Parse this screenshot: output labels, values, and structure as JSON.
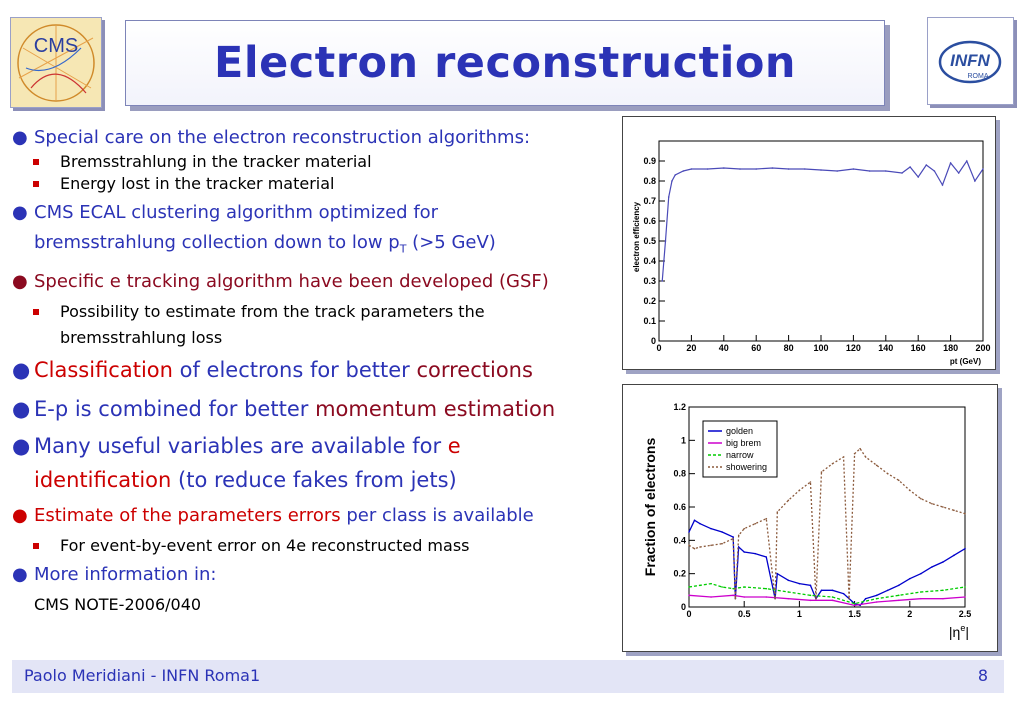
{
  "title": "Electron reconstruction",
  "logos": {
    "left": "CMS",
    "right_main": "INFN",
    "right_sub": "ROMA"
  },
  "bullets": {
    "b1": "Special care on the electron reconstruction algorithms:",
    "b1_sub1": "Bremsstrahlung in the tracker material",
    "b1_sub2": "Energy lost in the tracker material",
    "b2_line1": "CMS ECAL clustering algorithm optimized for",
    "b2_line2_pre": "bremsstrahlung collection down to low p",
    "b2_line2_sub": "T",
    "b2_line2_post": " (>5 GeV)",
    "b3": "Specific e tracking algorithm have been developed (GSF)",
    "b3_sub1_line1": "Possibility to estimate from the track parameters the",
    "b3_sub1_line2": "bremsstrahlung loss",
    "b4_a": "Classification",
    "b4_b": " of electrons for better ",
    "b4_c": "corrections",
    "b5_a": "E-p is combined for better ",
    "b5_b": "momentum estimation",
    "b6_a": "Many useful variables are available for ",
    "b6_b": "e",
    "b6_c": "identification",
    "b6_d": " (to reduce fakes from jets)",
    "b7_a": "Estimate of the parameters errors",
    "b7_b": " per class is available",
    "b7_sub1": "For event-by-event error on 4e reconstructed mass",
    "b8": "More information in:",
    "b8_text": "CMS NOTE-2006/040"
  },
  "footer": {
    "author": "Paolo Meridiani  - INFN Roma1",
    "page": "8"
  },
  "chart_data": [
    {
      "type": "line",
      "ylabel": "electron efficiency",
      "xlabel": "pt (GeV)",
      "xlim": [
        0,
        200
      ],
      "ylim": [
        0,
        1.0
      ],
      "xticks": [
        "0",
        "20",
        "40",
        "60",
        "80",
        "100",
        "120",
        "140",
        "160",
        "180",
        "200"
      ],
      "yticks": [
        "0",
        "0.1",
        "0.2",
        "0.3",
        "0.4",
        "0.5",
        "0.6",
        "0.7",
        "0.8",
        "0.9"
      ],
      "color": "#4a4ab8",
      "series": [
        {
          "x": [
            2,
            4,
            6,
            8,
            10,
            15,
            20,
            30,
            40,
            50,
            60,
            70,
            80,
            90,
            100,
            110,
            120,
            130,
            140,
            150,
            155,
            160,
            165,
            170,
            175,
            180,
            185,
            190,
            195,
            200
          ],
          "values": [
            0.3,
            0.5,
            0.72,
            0.8,
            0.83,
            0.85,
            0.86,
            0.86,
            0.865,
            0.86,
            0.86,
            0.865,
            0.86,
            0.86,
            0.855,
            0.85,
            0.86,
            0.85,
            0.85,
            0.84,
            0.87,
            0.82,
            0.88,
            0.85,
            0.78,
            0.89,
            0.84,
            0.9,
            0.8,
            0.86
          ]
        }
      ]
    },
    {
      "type": "line",
      "ylabel": "Fraction of electrons",
      "xlabel": "|η^e|",
      "xlim": [
        0,
        2.5
      ],
      "ylim": [
        0,
        1.2
      ],
      "xticks": [
        "0",
        "0.5",
        "1",
        "1.5",
        "2",
        "2.5"
      ],
      "yticks": [
        "0",
        "0.2",
        "0.4",
        "0.6",
        "0.8",
        "1",
        "1.2"
      ],
      "legend_position": "top-left",
      "series": [
        {
          "name": "golden",
          "color": "#0000cc",
          "x": [
            0,
            0.05,
            0.1,
            0.2,
            0.3,
            0.4,
            0.42,
            0.45,
            0.5,
            0.6,
            0.7,
            0.78,
            0.8,
            0.9,
            1.0,
            1.1,
            1.15,
            1.2,
            1.3,
            1.4,
            1.45,
            1.5,
            1.55,
            1.6,
            1.7,
            1.8,
            1.9,
            2.0,
            2.1,
            2.2,
            2.3,
            2.4,
            2.5
          ],
          "values": [
            0.45,
            0.52,
            0.5,
            0.47,
            0.45,
            0.42,
            0.05,
            0.36,
            0.33,
            0.32,
            0.3,
            0.05,
            0.2,
            0.16,
            0.14,
            0.13,
            0.05,
            0.1,
            0.1,
            0.08,
            0.05,
            0.02,
            0.01,
            0.05,
            0.07,
            0.1,
            0.13,
            0.17,
            0.2,
            0.24,
            0.27,
            0.31,
            0.35
          ]
        },
        {
          "name": "big brem",
          "color": "#cc00cc",
          "x": [
            0,
            0.2,
            0.4,
            0.5,
            0.7,
            0.9,
            1.1,
            1.3,
            1.5,
            1.7,
            1.9,
            2.1,
            2.3,
            2.5
          ],
          "values": [
            0.07,
            0.06,
            0.07,
            0.06,
            0.06,
            0.05,
            0.04,
            0.04,
            0.01,
            0.03,
            0.04,
            0.05,
            0.05,
            0.06
          ]
        },
        {
          "name": "narrow",
          "color": "#00cc00",
          "x": [
            0,
            0.1,
            0.2,
            0.3,
            0.4,
            0.5,
            0.7,
            0.9,
            1.1,
            1.3,
            1.5,
            1.7,
            1.9,
            2.1,
            2.3,
            2.5
          ],
          "values": [
            0.12,
            0.13,
            0.14,
            0.12,
            0.11,
            0.12,
            0.11,
            0.09,
            0.07,
            0.06,
            0.02,
            0.05,
            0.07,
            0.09,
            0.1,
            0.12
          ]
        },
        {
          "name": "showering",
          "color": "#8b5a3c",
          "x": [
            0,
            0.05,
            0.1,
            0.2,
            0.3,
            0.4,
            0.42,
            0.45,
            0.5,
            0.6,
            0.7,
            0.78,
            0.8,
            0.9,
            1.0,
            1.1,
            1.15,
            1.2,
            1.3,
            1.4,
            1.45,
            1.5,
            1.55,
            1.6,
            1.7,
            1.8,
            1.9,
            2.0,
            2.1,
            2.2,
            2.3,
            2.4,
            2.5
          ],
          "values": [
            0.37,
            0.35,
            0.36,
            0.37,
            0.38,
            0.41,
            0.05,
            0.43,
            0.47,
            0.5,
            0.53,
            0.05,
            0.57,
            0.64,
            0.7,
            0.75,
            0.05,
            0.81,
            0.86,
            0.9,
            0.05,
            0.92,
            0.95,
            0.9,
            0.85,
            0.8,
            0.76,
            0.7,
            0.65,
            0.62,
            0.6,
            0.58,
            0.56
          ]
        }
      ]
    }
  ]
}
